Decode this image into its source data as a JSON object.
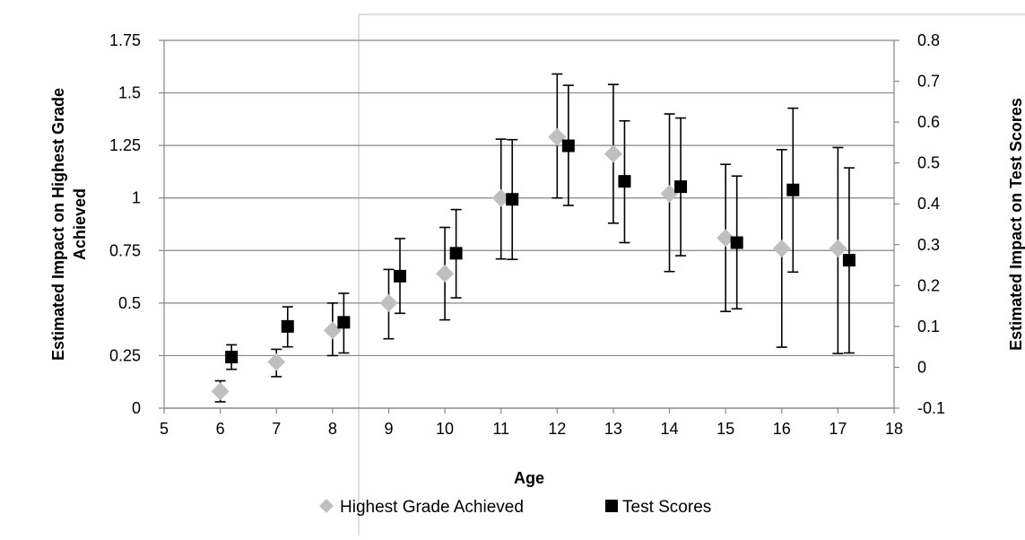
{
  "chart_data": {
    "type": "scatter",
    "title": "",
    "xlabel": "Age",
    "ylabel_left": "Estimated Impact on Highest Grade Achieved",
    "ylabel_left_lines": [
      "Estimated Impact on Highest Grade",
      "Achieved"
    ],
    "ylabel_right": "Estimated Impact on Test Scores",
    "xlim": [
      5,
      18
    ],
    "ylim_left": [
      0,
      1.75
    ],
    "ylim_right": [
      -0.1,
      0.8
    ],
    "x_ticks": [
      "5",
      "6",
      "7",
      "8",
      "9",
      "10",
      "11",
      "12",
      "13",
      "14",
      "15",
      "16",
      "17",
      "18"
    ],
    "y_left_ticks": [
      "0",
      "0.25",
      "0.5",
      "0.75",
      "1",
      "1.25",
      "1.5",
      "1.75"
    ],
    "y_right_ticks": [
      "-0.1",
      "0",
      "0.1",
      "0.2",
      "0.3",
      "0.4",
      "0.5",
      "0.6",
      "0.7",
      "0.8"
    ],
    "grid": true,
    "legend_position": "bottom",
    "series": [
      {
        "name": "Highest Grade Achieved",
        "axis": "left",
        "marker": "diamond",
        "color": "#bfbfbf",
        "x": [
          6,
          7,
          8,
          9,
          10,
          11,
          12,
          13,
          14,
          15,
          16,
          17
        ],
        "y": [
          0.08,
          0.22,
          0.37,
          0.5,
          0.64,
          1.0,
          1.29,
          1.21,
          1.02,
          0.81,
          0.76,
          0.76
        ],
        "lower": [
          0.03,
          0.15,
          0.25,
          0.33,
          0.42,
          0.71,
          1.0,
          0.88,
          0.65,
          0.46,
          0.29,
          0.26
        ],
        "upper": [
          0.13,
          0.28,
          0.5,
          0.66,
          0.86,
          1.28,
          1.59,
          1.54,
          1.4,
          1.16,
          1.23,
          1.24
        ]
      },
      {
        "name": "Test Scores",
        "axis": "right",
        "marker": "square",
        "color": "#000000",
        "x": [
          6.2,
          7.2,
          8.2,
          9.2,
          10.2,
          11.2,
          12.2,
          13.2,
          14.2,
          15.2,
          16.2,
          17.2
        ],
        "y": [
          0.025,
          0.1,
          0.11,
          0.223,
          0.279,
          0.411,
          0.542,
          0.455,
          0.442,
          0.305,
          0.434,
          0.262
        ],
        "lower": [
          -0.005,
          0.05,
          0.035,
          0.132,
          0.17,
          0.264,
          0.396,
          0.305,
          0.273,
          0.143,
          0.233,
          0.035
        ],
        "upper": [
          0.055,
          0.148,
          0.181,
          0.315,
          0.386,
          0.557,
          0.69,
          0.603,
          0.61,
          0.468,
          0.634,
          0.488
        ]
      }
    ]
  }
}
